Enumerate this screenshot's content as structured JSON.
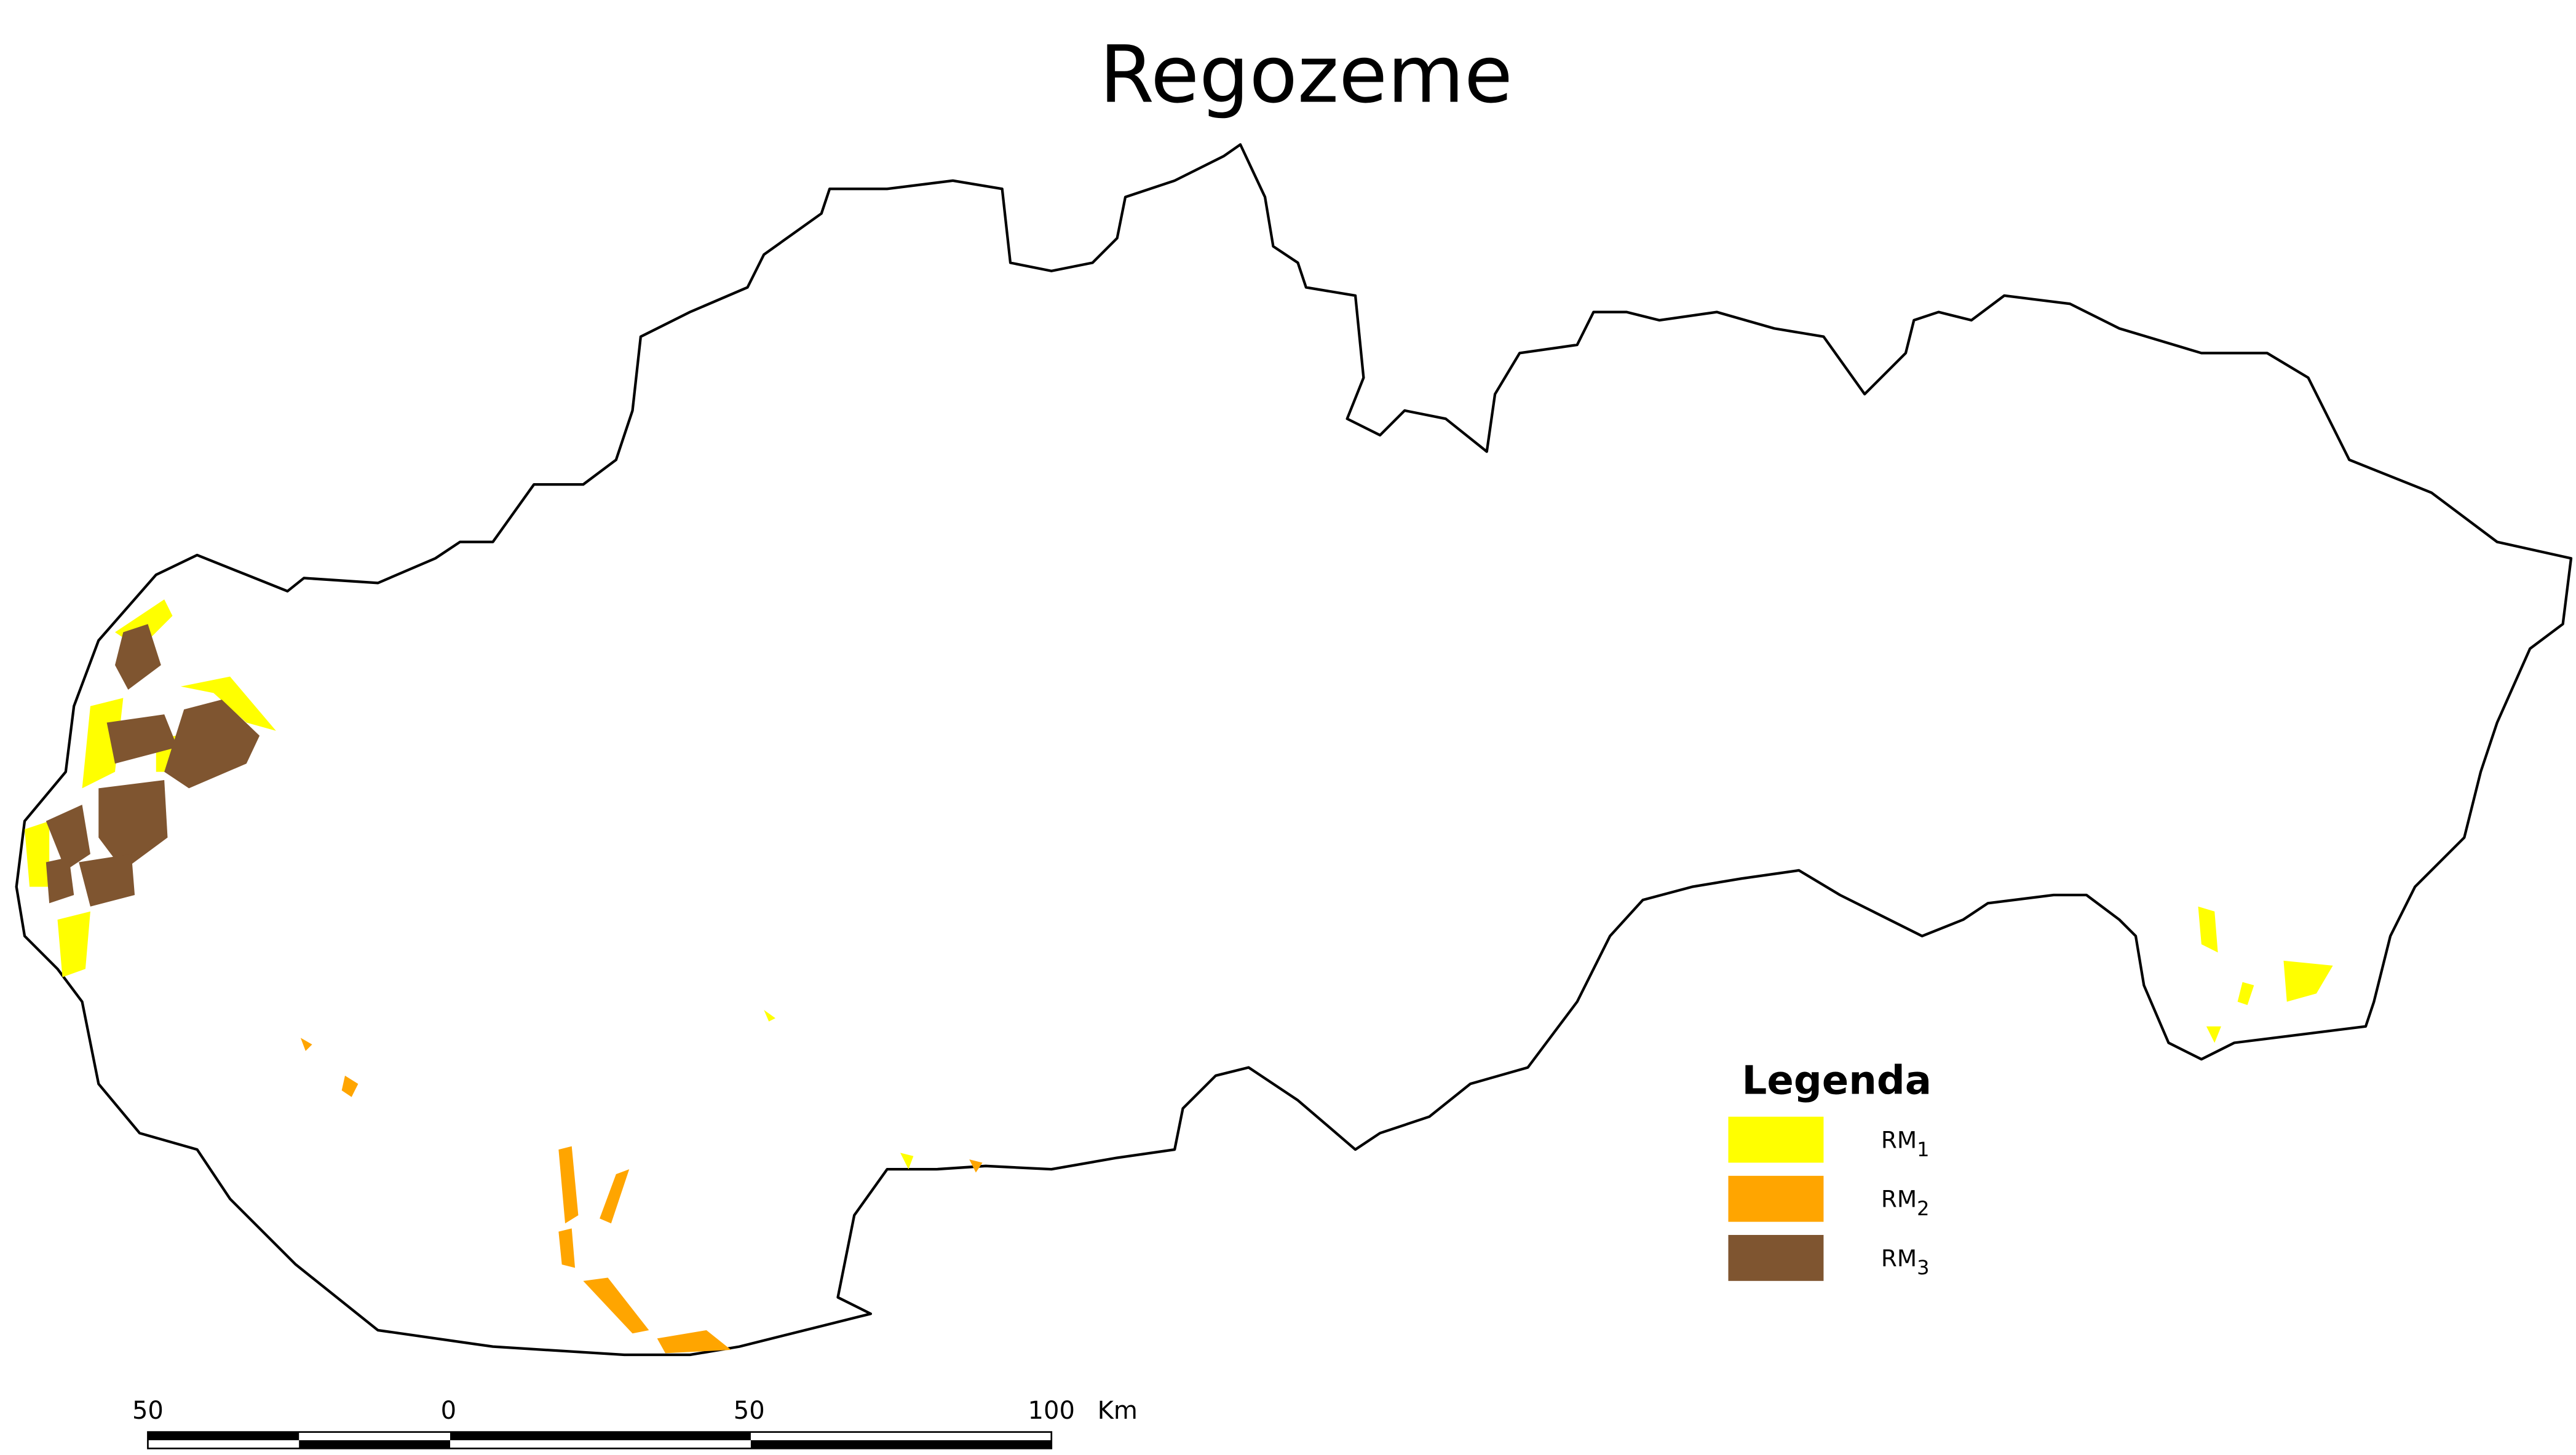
{
  "title": "Regozeme",
  "legend": {
    "title": "Legenda",
    "items": [
      {
        "label": "RM",
        "sub": "1",
        "color": "#ffff00"
      },
      {
        "label": "RM",
        "sub": "2",
        "color": "#ffa500"
      },
      {
        "label": "RM",
        "sub": "3",
        "color": "#7f5530"
      }
    ]
  },
  "scale_bar": {
    "labels": [
      "50",
      "0",
      "50",
      "100"
    ],
    "unit": "Km"
  }
}
